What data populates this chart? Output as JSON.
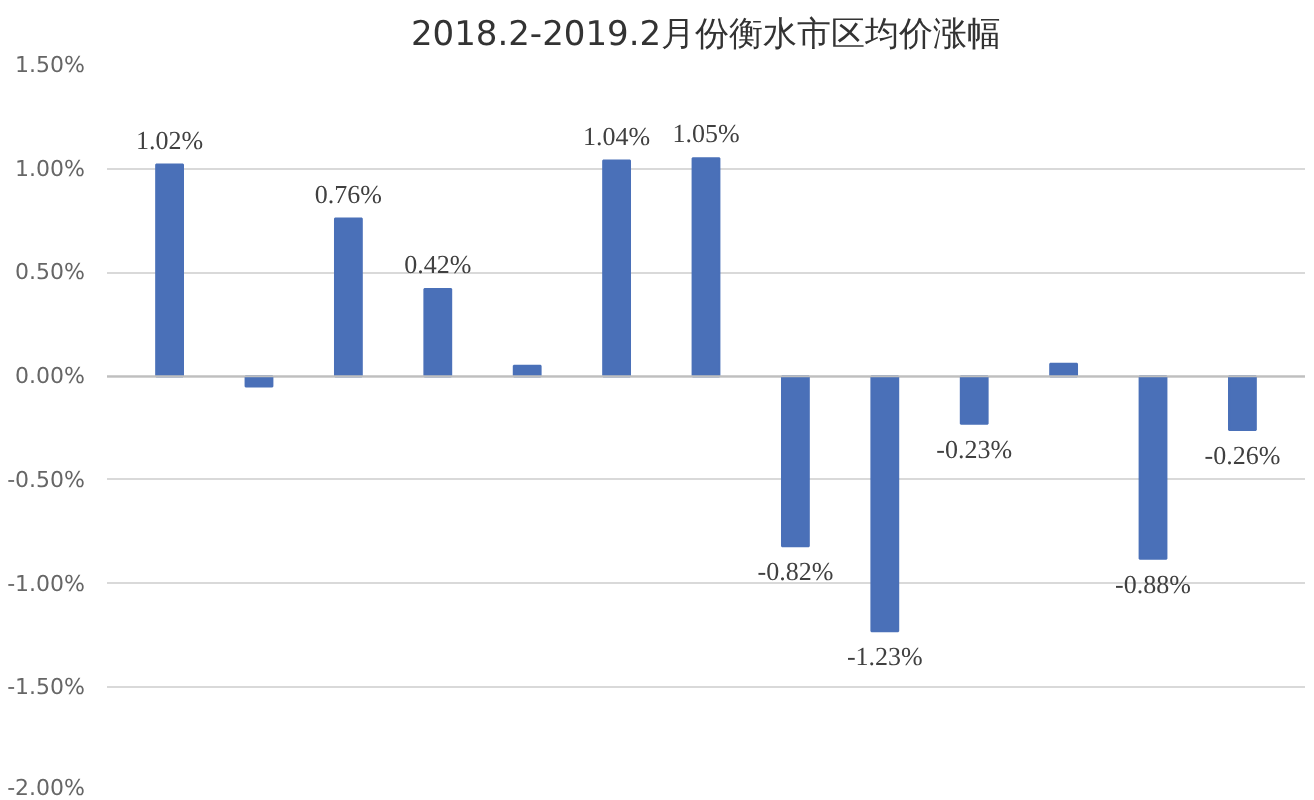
{
  "chart_data": {
    "type": "bar",
    "title": "2018.2-2019.2月份衡水市区均价涨幅",
    "categories": [
      null,
      null,
      null,
      null,
      null,
      null,
      null,
      null,
      null,
      null,
      null,
      null,
      null
    ],
    "values": [
      1.02,
      -0.05,
      0.76,
      0.42,
      0.05,
      1.04,
      1.05,
      -0.82,
      -1.23,
      -0.23,
      0.06,
      -0.88,
      -0.26
    ],
    "value_labels": [
      "1.02%",
      null,
      "0.76%",
      "0.42%",
      null,
      "1.04%",
      "1.05%",
      "-0.82%",
      "-1.23%",
      "-0.23%",
      null,
      "-0.88%",
      "-0.26%"
    ],
    "color": "#4a70b8",
    "ylim": [
      -2.0,
      1.5
    ],
    "yticks": [
      {
        "value": -2.0,
        "label": "-2.00%"
      },
      {
        "value": -1.5,
        "label": "-1.50%"
      },
      {
        "value": -1.0,
        "label": "-1.00%"
      },
      {
        "value": -0.5,
        "label": "-0.50%"
      },
      {
        "value": 0,
        "label": "0.00%"
      },
      {
        "value": 0.5,
        "label": "0.50%"
      },
      {
        "value": 1.0,
        "label": "1.00%"
      },
      {
        "value": 1.5,
        "label": "1.50%"
      }
    ],
    "grid": "y"
  }
}
